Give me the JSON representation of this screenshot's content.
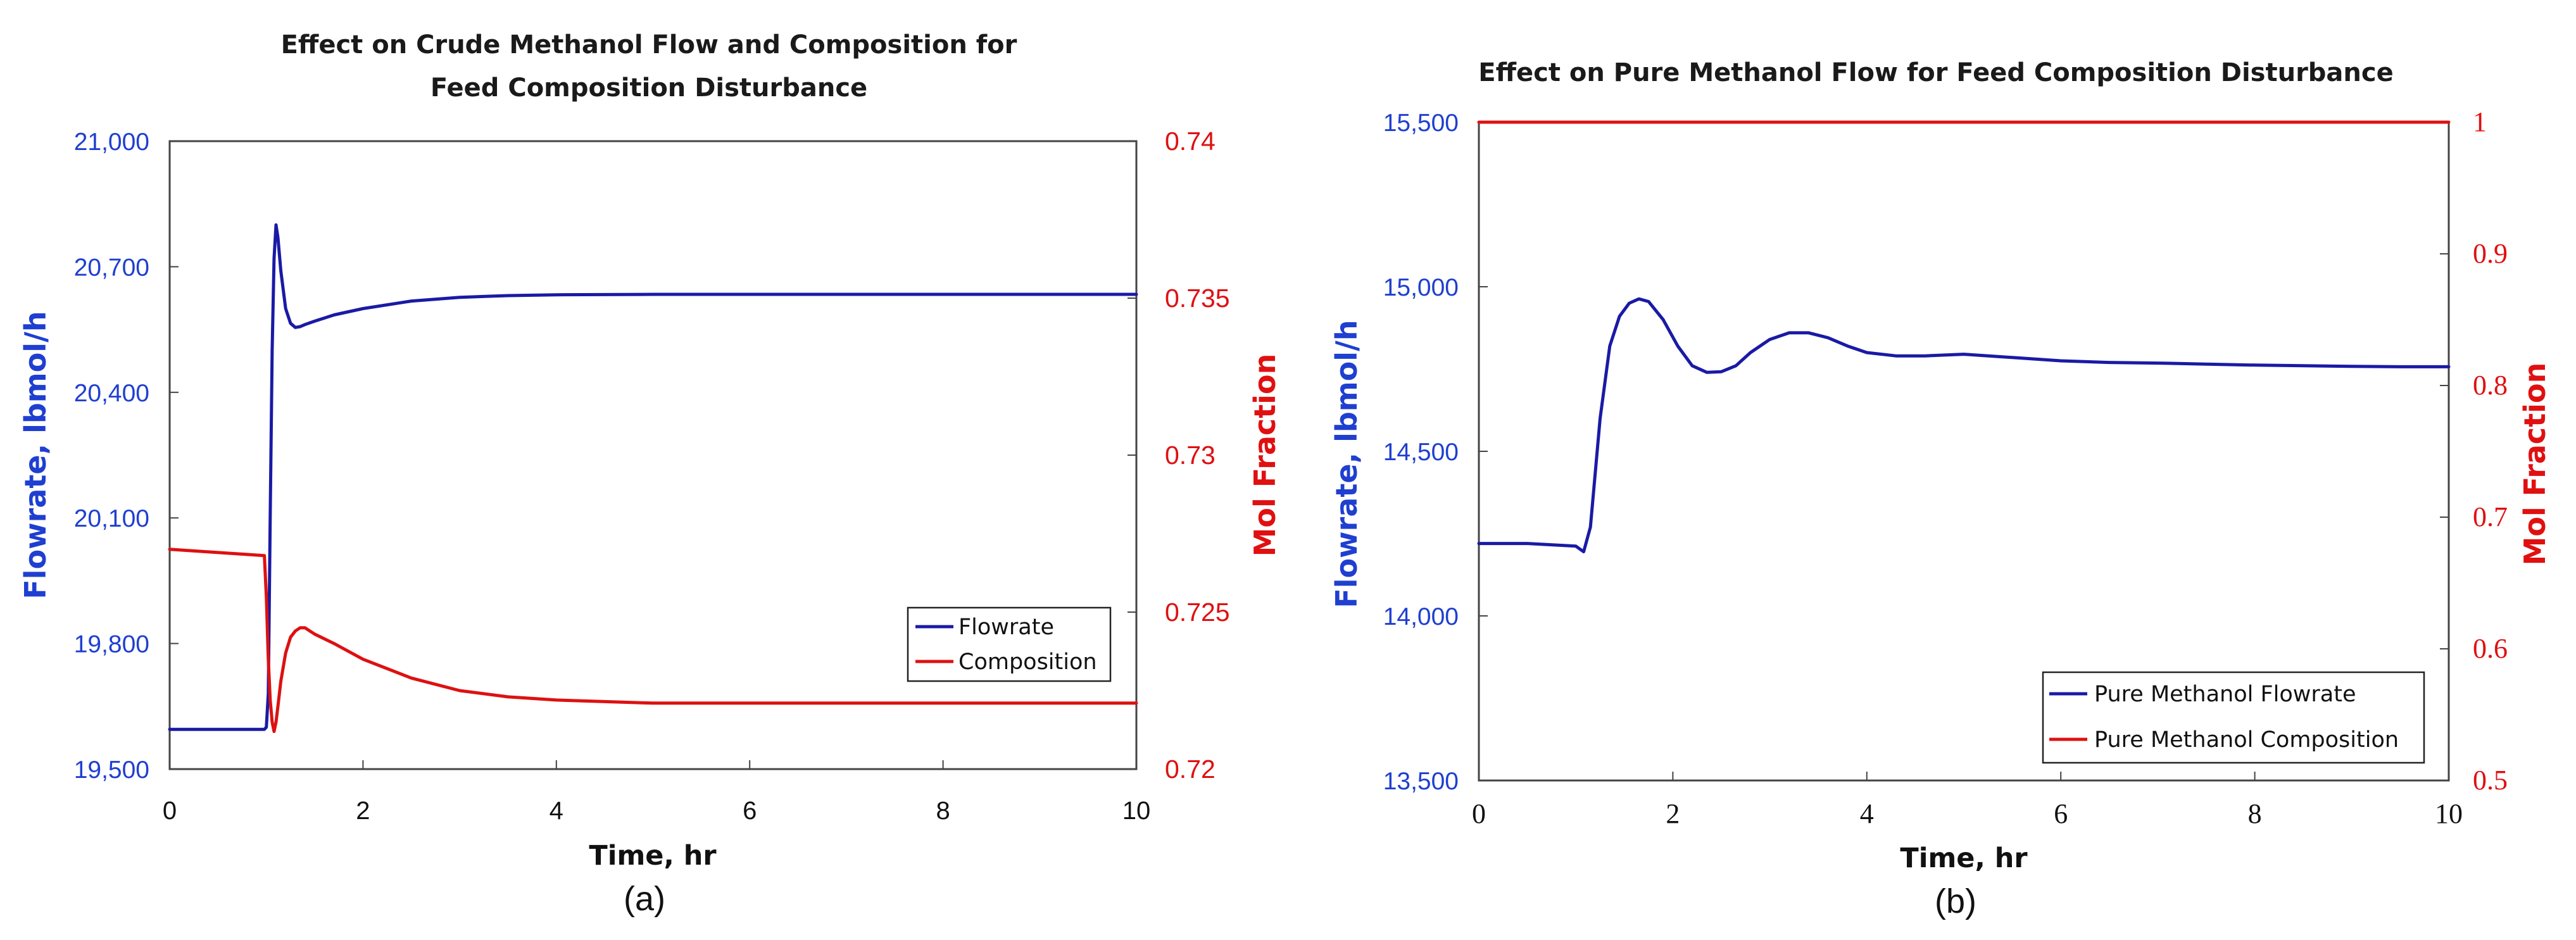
{
  "chart_data": [
    {
      "type": "line",
      "title_line1": "Effect on Crude Methanol Flow and Composition for",
      "title_line2": "Feed Composition Disturbance",
      "xlabel": "Time, hr",
      "ylabel_left": "Flowrate, lbmol/h",
      "ylabel_right": "Mol Fraction",
      "panel_label": "(a)",
      "xlim": [
        0,
        10
      ],
      "ylim_left": [
        19500,
        21000
      ],
      "ylim_right": [
        0.72,
        0.74
      ],
      "x_ticks": [
        "0",
        "2",
        "4",
        "6",
        "8",
        "10"
      ],
      "y_left_ticks": [
        "19,500",
        "19,800",
        "20,100",
        "20,400",
        "20,700",
        "21,000"
      ],
      "y_right_ticks": [
        "0.72",
        "0.725",
        "0.73",
        "0.735",
        "0.74"
      ],
      "legend_position": "lower-right",
      "series": [
        {
          "name": "Flowrate",
          "axis": "left",
          "color": "#1a1aa6",
          "x": [
            0,
            0.98,
            1.0,
            1.02,
            1.04,
            1.06,
            1.08,
            1.1,
            1.12,
            1.15,
            1.2,
            1.25,
            1.3,
            1.35,
            1.4,
            1.5,
            1.7,
            2.0,
            2.5,
            3.0,
            3.5,
            4.0,
            5.0,
            6.0,
            7.0,
            8.0,
            9.0,
            10.0
          ],
          "y": [
            19595,
            19595,
            19600,
            19680,
            20100,
            20500,
            20720,
            20800,
            20770,
            20690,
            20600,
            20565,
            20555,
            20557,
            20562,
            20570,
            20585,
            20600,
            20618,
            20627,
            20631,
            20633,
            20634,
            20634,
            20634,
            20634,
            20634,
            20634
          ]
        },
        {
          "name": "Composition",
          "axis": "right",
          "color": "#dd1111",
          "x": [
            0,
            0.98,
            1.0,
            1.02,
            1.04,
            1.06,
            1.08,
            1.1,
            1.12,
            1.15,
            1.2,
            1.25,
            1.3,
            1.35,
            1.4,
            1.45,
            1.5,
            1.7,
            2.0,
            2.5,
            3.0,
            3.5,
            4.0,
            4.5,
            5.0,
            6.0,
            7.0,
            8.0,
            9.0,
            10.0
          ],
          "y": [
            0.727,
            0.7268,
            0.7255,
            0.7235,
            0.7222,
            0.7215,
            0.7212,
            0.7215,
            0.722,
            0.7228,
            0.7237,
            0.7242,
            0.7244,
            0.7245,
            0.7245,
            0.7244,
            0.7243,
            0.724,
            0.7235,
            0.7229,
            0.7225,
            0.7223,
            0.7222,
            0.72215,
            0.7221,
            0.7221,
            0.7221,
            0.7221,
            0.7221,
            0.7221
          ]
        }
      ]
    },
    {
      "type": "line",
      "title_line1": "Effect on Pure Methanol Flow for Feed Composition Disturbance",
      "xlabel": "Time, hr",
      "ylabel_left": "Flowrate, lbmol/h",
      "ylabel_right": "Mol Fraction",
      "panel_label": "(b)",
      "xlim": [
        0,
        10
      ],
      "ylim_left": [
        13500,
        15500
      ],
      "ylim_right": [
        0.5,
        1
      ],
      "x_ticks": [
        "0",
        "2",
        "4",
        "6",
        "8",
        "10"
      ],
      "y_left_ticks": [
        "13,500",
        "14,000",
        "14,500",
        "15,000",
        "15,500"
      ],
      "y_right_ticks": [
        "0.5",
        "0.6",
        "0.7",
        "0.8",
        "0.9",
        "1"
      ],
      "legend_position": "lower-right",
      "series": [
        {
          "name": "Pure Methanol Flowrate",
          "axis": "left",
          "color": "#1a1aa6",
          "x": [
            0,
            0.5,
            1.0,
            1.08,
            1.15,
            1.25,
            1.35,
            1.45,
            1.55,
            1.65,
            1.75,
            1.9,
            2.05,
            2.2,
            2.35,
            2.5,
            2.65,
            2.8,
            3.0,
            3.2,
            3.4,
            3.6,
            3.8,
            4.0,
            4.3,
            4.6,
            5.0,
            5.5,
            6.0,
            6.5,
            7.0,
            7.5,
            8.0,
            8.5,
            9.0,
            9.5,
            10.0
          ],
          "y": [
            14220,
            14220,
            14212,
            14195,
            14270,
            14600,
            14820,
            14910,
            14950,
            14963,
            14955,
            14900,
            14820,
            14760,
            14740,
            14742,
            14760,
            14800,
            14840,
            14860,
            14860,
            14845,
            14820,
            14800,
            14790,
            14790,
            14795,
            14785,
            14775,
            14770,
            14768,
            14765,
            14762,
            14760,
            14758,
            14757,
            14757
          ]
        },
        {
          "name": "Pure Methanol Composition",
          "axis": "right",
          "color": "#dd1111",
          "x": [
            0,
            10
          ],
          "y": [
            1,
            1
          ]
        }
      ]
    }
  ]
}
